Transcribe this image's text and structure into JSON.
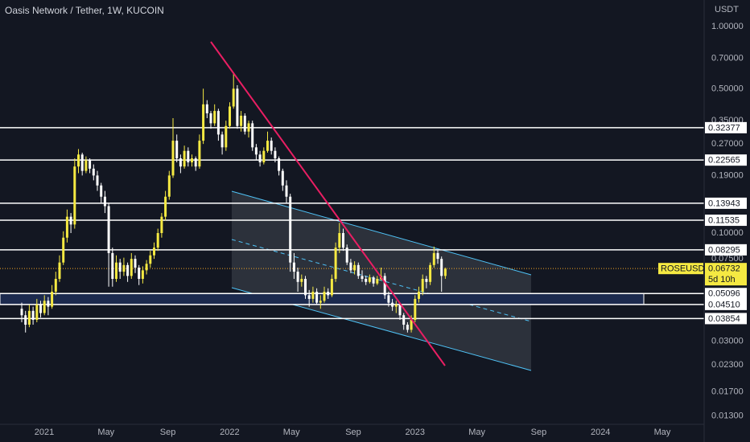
{
  "chart_data": {
    "type": "candlestick",
    "title": "Oasis Network / Tether, 1W, KUCOIN",
    "y_unit": "USDT",
    "log_scale": true,
    "up_color": "#f5e942",
    "down_color": "#ffffff",
    "yticks": [
      {
        "value": 1,
        "label": "1.00000"
      },
      {
        "value": 0.7,
        "label": "0.70000"
      },
      {
        "value": 0.5,
        "label": "0.50000"
      },
      {
        "value": 0.35,
        "label": "0.35000"
      },
      {
        "value": 0.27,
        "label": "0.27000"
      },
      {
        "value": 0.19,
        "label": "0.19000"
      },
      {
        "value": 0.1,
        "label": "0.10000"
      },
      {
        "value": 0.075,
        "label": "0.07500"
      },
      {
        "value": 0.03,
        "label": "0.03000"
      },
      {
        "value": 0.023,
        "label": "0.02300"
      },
      {
        "value": 0.017,
        "label": "0.01700"
      },
      {
        "value": 0.013,
        "label": "0.01300"
      }
    ],
    "xticks": [
      {
        "value": "2021-01",
        "label": "2021"
      },
      {
        "value": "2021-05",
        "label": "May"
      },
      {
        "value": "2021-09",
        "label": "Sep"
      },
      {
        "value": "2022-01",
        "label": "2022"
      },
      {
        "value": "2022-05",
        "label": "May"
      },
      {
        "value": "2022-09",
        "label": "Sep"
      },
      {
        "value": "2023-01",
        "label": "2023"
      },
      {
        "value": "2023-05",
        "label": "May"
      },
      {
        "value": "2023-09",
        "label": "Sep"
      },
      {
        "value": "2024-01",
        "label": "2024"
      },
      {
        "value": "2024-05",
        "label": "May"
      }
    ],
    "levels": [
      0.32377,
      0.22565,
      0.13943,
      0.11535,
      0.08295,
      0.05096,
      {
        "value": 0.0451,
        "label": "0.04510"
      },
      0.03854
    ],
    "last": {
      "name": "ROSEUSDT",
      "value": 0.06732,
      "countdown": "5d 10h"
    },
    "candles": [
      [
        0.043,
        0.046,
        0.037,
        0.04
      ],
      [
        0.04,
        0.042,
        0.033,
        0.036
      ],
      [
        0.036,
        0.045,
        0.035,
        0.042
      ],
      [
        0.042,
        0.044,
        0.036,
        0.038
      ],
      [
        0.038,
        0.048,
        0.037,
        0.045
      ],
      [
        0.045,
        0.047,
        0.039,
        0.041
      ],
      [
        0.041,
        0.05,
        0.04,
        0.047
      ],
      [
        0.047,
        0.049,
        0.04,
        0.044
      ],
      [
        0.044,
        0.056,
        0.043,
        0.052
      ],
      [
        0.052,
        0.065,
        0.05,
        0.06
      ],
      [
        0.06,
        0.078,
        0.058,
        0.072
      ],
      [
        0.072,
        0.102,
        0.07,
        0.095
      ],
      [
        0.095,
        0.13,
        0.09,
        0.12
      ],
      [
        0.12,
        0.125,
        0.1,
        0.11
      ],
      [
        0.11,
        0.23,
        0.105,
        0.21
      ],
      [
        0.21,
        0.255,
        0.195,
        0.24
      ],
      [
        0.24,
        0.245,
        0.19,
        0.2
      ],
      [
        0.2,
        0.235,
        0.195,
        0.225
      ],
      [
        0.225,
        0.23,
        0.195,
        0.205
      ],
      [
        0.205,
        0.215,
        0.18,
        0.19
      ],
      [
        0.19,
        0.2,
        0.16,
        0.17
      ],
      [
        0.17,
        0.175,
        0.14,
        0.15
      ],
      [
        0.15,
        0.16,
        0.125,
        0.135
      ],
      [
        0.135,
        0.14,
        0.055,
        0.08
      ],
      [
        0.08,
        0.085,
        0.055,
        0.06
      ],
      [
        0.06,
        0.078,
        0.058,
        0.072
      ],
      [
        0.072,
        0.075,
        0.06,
        0.065
      ],
      [
        0.065,
        0.076,
        0.062,
        0.07
      ],
      [
        0.07,
        0.072,
        0.058,
        0.062
      ],
      [
        0.062,
        0.08,
        0.06,
        0.075
      ],
      [
        0.075,
        0.078,
        0.064,
        0.068
      ],
      [
        0.068,
        0.07,
        0.056,
        0.06
      ],
      [
        0.06,
        0.069,
        0.057,
        0.066
      ],
      [
        0.066,
        0.074,
        0.063,
        0.071
      ],
      [
        0.071,
        0.082,
        0.068,
        0.078
      ],
      [
        0.078,
        0.09,
        0.075,
        0.085
      ],
      [
        0.085,
        0.105,
        0.082,
        0.1
      ],
      [
        0.1,
        0.125,
        0.095,
        0.12
      ],
      [
        0.12,
        0.16,
        0.115,
        0.15
      ],
      [
        0.15,
        0.2,
        0.145,
        0.19
      ],
      [
        0.19,
        0.36,
        0.185,
        0.28
      ],
      [
        0.28,
        0.3,
        0.22,
        0.23
      ],
      [
        0.23,
        0.24,
        0.195,
        0.21
      ],
      [
        0.21,
        0.265,
        0.205,
        0.25
      ],
      [
        0.25,
        0.26,
        0.21,
        0.22
      ],
      [
        0.22,
        0.24,
        0.21,
        0.23
      ],
      [
        0.23,
        0.235,
        0.2,
        0.21
      ],
      [
        0.21,
        0.3,
        0.205,
        0.28
      ],
      [
        0.28,
        0.5,
        0.27,
        0.42
      ],
      [
        0.42,
        0.44,
        0.36,
        0.38
      ],
      [
        0.38,
        0.39,
        0.32,
        0.34
      ],
      [
        0.34,
        0.42,
        0.33,
        0.39
      ],
      [
        0.39,
        0.4,
        0.28,
        0.3
      ],
      [
        0.3,
        0.31,
        0.24,
        0.26
      ],
      [
        0.26,
        0.35,
        0.25,
        0.33
      ],
      [
        0.33,
        0.43,
        0.32,
        0.41
      ],
      [
        0.41,
        0.6,
        0.4,
        0.5
      ],
      [
        0.5,
        0.52,
        0.32,
        0.33
      ],
      [
        0.33,
        0.39,
        0.31,
        0.37
      ],
      [
        0.37,
        0.38,
        0.3,
        0.31
      ],
      [
        0.31,
        0.35,
        0.29,
        0.34
      ],
      [
        0.34,
        0.35,
        0.25,
        0.26
      ],
      [
        0.26,
        0.27,
        0.225,
        0.24
      ],
      [
        0.24,
        0.25,
        0.21,
        0.22
      ],
      [
        0.22,
        0.26,
        0.215,
        0.25
      ],
      [
        0.25,
        0.31,
        0.245,
        0.28
      ],
      [
        0.28,
        0.29,
        0.24,
        0.25
      ],
      [
        0.25,
        0.26,
        0.22,
        0.23
      ],
      [
        0.23,
        0.235,
        0.19,
        0.2
      ],
      [
        0.2,
        0.205,
        0.16,
        0.17
      ],
      [
        0.17,
        0.18,
        0.14,
        0.15
      ],
      [
        0.15,
        0.155,
        0.065,
        0.072
      ],
      [
        0.072,
        0.08,
        0.06,
        0.065
      ],
      [
        0.065,
        0.068,
        0.052,
        0.058
      ],
      [
        0.058,
        0.063,
        0.055,
        0.06
      ],
      [
        0.06,
        0.062,
        0.048,
        0.05
      ],
      [
        0.05,
        0.053,
        0.044,
        0.048
      ],
      [
        0.048,
        0.055,
        0.046,
        0.052
      ],
      [
        0.052,
        0.054,
        0.045,
        0.046
      ],
      [
        0.046,
        0.05,
        0.043,
        0.047
      ],
      [
        0.047,
        0.055,
        0.046,
        0.052
      ],
      [
        0.052,
        0.054,
        0.048,
        0.05
      ],
      [
        0.05,
        0.063,
        0.049,
        0.06
      ],
      [
        0.06,
        0.09,
        0.058,
        0.085
      ],
      [
        0.085,
        0.112,
        0.08,
        0.1
      ],
      [
        0.1,
        0.105,
        0.082,
        0.085
      ],
      [
        0.085,
        0.088,
        0.07,
        0.072
      ],
      [
        0.072,
        0.075,
        0.064,
        0.066
      ],
      [
        0.066,
        0.073,
        0.063,
        0.07
      ],
      [
        0.07,
        0.072,
        0.06,
        0.062
      ],
      [
        0.062,
        0.066,
        0.058,
        0.06
      ],
      [
        0.06,
        0.062,
        0.056,
        0.058
      ],
      [
        0.058,
        0.063,
        0.057,
        0.061
      ],
      [
        0.061,
        0.062,
        0.055,
        0.057
      ],
      [
        0.057,
        0.062,
        0.056,
        0.06
      ],
      [
        0.06,
        0.068,
        0.059,
        0.062
      ],
      [
        0.062,
        0.064,
        0.048,
        0.05
      ],
      [
        0.05,
        0.052,
        0.044,
        0.046
      ],
      [
        0.046,
        0.048,
        0.042,
        0.044
      ],
      [
        0.044,
        0.047,
        0.041,
        0.045
      ],
      [
        0.045,
        0.046,
        0.038,
        0.04
      ],
      [
        0.04,
        0.041,
        0.034,
        0.036
      ],
      [
        0.036,
        0.037,
        0.033,
        0.034
      ],
      [
        0.034,
        0.04,
        0.033,
        0.038
      ],
      [
        0.038,
        0.05,
        0.037,
        0.048
      ],
      [
        0.048,
        0.055,
        0.046,
        0.052
      ],
      [
        0.052,
        0.063,
        0.05,
        0.06
      ],
      [
        0.06,
        0.062,
        0.054,
        0.058
      ],
      [
        0.058,
        0.072,
        0.056,
        0.07
      ],
      [
        0.07,
        0.086,
        0.068,
        0.08
      ],
      [
        0.08,
        0.083,
        0.071,
        0.075
      ],
      [
        0.075,
        0.077,
        0.052,
        0.062
      ],
      [
        0.062,
        0.068,
        0.06,
        0.067
      ]
    ]
  }
}
